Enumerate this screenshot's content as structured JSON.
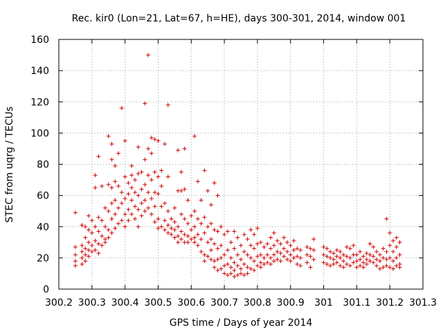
{
  "chart_data": {
    "type": "scatter",
    "title": "Rec. kir0 (Lon=21, Lat=67, h=HE), days 300-301, 2014, window 001",
    "xlabel": "GPS time / Days of year 2014",
    "ylabel": "STEC from uqrg / TECUs",
    "xlim": [
      300.2,
      301.3
    ],
    "ylim": [
      0,
      160
    ],
    "xticks": [
      "300.2",
      "300.3",
      "300.4",
      "300.5",
      "300.6",
      "300.7",
      "300.8",
      "300.9",
      "301",
      "301.1",
      "301.2",
      "301.3"
    ],
    "yticks": [
      "0",
      "20",
      "40",
      "60",
      "80",
      "100",
      "120",
      "140",
      "160"
    ],
    "grid": true,
    "marker": "+",
    "marker_color": "#cc0000",
    "points": [
      [
        300.25,
        49
      ],
      [
        300.25,
        27
      ],
      [
        300.25,
        22
      ],
      [
        300.25,
        18
      ],
      [
        300.25,
        15
      ],
      [
        300.27,
        41
      ],
      [
        300.27,
        28
      ],
      [
        300.27,
        24
      ],
      [
        300.27,
        20
      ],
      [
        300.27,
        16
      ],
      [
        300.28,
        40
      ],
      [
        300.28,
        33
      ],
      [
        300.28,
        26
      ],
      [
        300.28,
        22
      ],
      [
        300.28,
        18
      ],
      [
        300.29,
        47
      ],
      [
        300.29,
        38
      ],
      [
        300.29,
        30
      ],
      [
        300.29,
        25
      ],
      [
        300.29,
        21
      ],
      [
        300.3,
        44
      ],
      [
        300.3,
        36
      ],
      [
        300.3,
        28
      ],
      [
        300.3,
        24
      ],
      [
        300.31,
        73
      ],
      [
        300.31,
        65
      ],
      [
        300.31,
        40
      ],
      [
        300.31,
        31
      ],
      [
        300.31,
        25
      ],
      [
        300.32,
        85
      ],
      [
        300.32,
        46
      ],
      [
        300.32,
        37
      ],
      [
        300.32,
        29
      ],
      [
        300.32,
        23
      ],
      [
        300.33,
        66
      ],
      [
        300.33,
        44
      ],
      [
        300.33,
        34
      ],
      [
        300.33,
        28
      ],
      [
        300.34,
        52
      ],
      [
        300.34,
        40
      ],
      [
        300.34,
        32
      ],
      [
        300.34,
        30
      ],
      [
        300.35,
        98
      ],
      [
        300.35,
        67
      ],
      [
        300.35,
        50
      ],
      [
        300.35,
        38
      ],
      [
        300.35,
        33
      ],
      [
        300.36,
        93
      ],
      [
        300.36,
        83
      ],
      [
        300.36,
        65
      ],
      [
        300.36,
        55
      ],
      [
        300.36,
        45
      ],
      [
        300.36,
        36
      ],
      [
        300.37,
        79
      ],
      [
        300.37,
        69
      ],
      [
        300.37,
        57
      ],
      [
        300.37,
        48
      ],
      [
        300.37,
        39
      ],
      [
        300.38,
        87
      ],
      [
        300.38,
        66
      ],
      [
        300.38,
        52
      ],
      [
        300.38,
        42
      ],
      [
        300.39,
        116
      ],
      [
        300.39,
        62
      ],
      [
        300.39,
        55
      ],
      [
        300.39,
        44
      ],
      [
        300.4,
        95
      ],
      [
        300.4,
        72
      ],
      [
        300.4,
        58
      ],
      [
        300.4,
        48
      ],
      [
        300.4,
        40
      ],
      [
        300.41,
        68
      ],
      [
        300.41,
        61
      ],
      [
        300.41,
        51
      ],
      [
        300.41,
        44
      ],
      [
        300.42,
        79
      ],
      [
        300.42,
        73
      ],
      [
        300.42,
        65
      ],
      [
        300.42,
        57
      ],
      [
        300.42,
        48
      ],
      [
        300.43,
        70
      ],
      [
        300.43,
        62
      ],
      [
        300.43,
        53
      ],
      [
        300.43,
        45
      ],
      [
        300.44,
        91
      ],
      [
        300.44,
        74
      ],
      [
        300.44,
        60
      ],
      [
        300.44,
        51
      ],
      [
        300.44,
        40
      ],
      [
        300.45,
        75
      ],
      [
        300.45,
        64
      ],
      [
        300.45,
        55
      ],
      [
        300.45,
        47
      ],
      [
        300.46,
        119
      ],
      [
        300.46,
        83
      ],
      [
        300.46,
        67
      ],
      [
        300.46,
        57
      ],
      [
        300.46,
        50
      ],
      [
        300.47,
        150
      ],
      [
        300.47,
        90
      ],
      [
        300.47,
        73
      ],
      [
        300.47,
        62
      ],
      [
        300.47,
        52
      ],
      [
        300.48,
        97
      ],
      [
        300.48,
        87
      ],
      [
        300.48,
        70
      ],
      [
        300.48,
        58
      ],
      [
        300.48,
        48
      ],
      [
        300.49,
        96
      ],
      [
        300.49,
        75
      ],
      [
        300.49,
        62
      ],
      [
        300.49,
        53
      ],
      [
        300.49,
        43
      ],
      [
        300.5,
        95
      ],
      [
        300.5,
        72
      ],
      [
        300.5,
        61
      ],
      [
        300.5,
        45
      ],
      [
        300.5,
        39
      ],
      [
        300.51,
        76
      ],
      [
        300.51,
        66
      ],
      [
        300.51,
        53
      ],
      [
        300.51,
        40
      ],
      [
        300.52,
        93
      ],
      [
        300.52,
        55
      ],
      [
        300.52,
        44
      ],
      [
        300.52,
        38
      ],
      [
        300.53,
        118
      ],
      [
        300.53,
        72
      ],
      [
        300.53,
        50
      ],
      [
        300.53,
        41
      ],
      [
        300.53,
        36
      ],
      [
        300.54,
        45
      ],
      [
        300.54,
        39
      ],
      [
        300.54,
        35
      ],
      [
        300.55,
        52
      ],
      [
        300.55,
        43
      ],
      [
        300.55,
        38
      ],
      [
        300.55,
        33
      ],
      [
        300.56,
        89
      ],
      [
        300.56,
        63
      ],
      [
        300.56,
        40
      ],
      [
        300.56,
        34
      ],
      [
        300.56,
        30
      ],
      [
        300.57,
        75
      ],
      [
        300.57,
        63
      ],
      [
        300.57,
        48
      ],
      [
        300.57,
        37
      ],
      [
        300.57,
        32
      ],
      [
        300.58,
        90
      ],
      [
        300.58,
        64
      ],
      [
        300.58,
        45
      ],
      [
        300.58,
        35
      ],
      [
        300.58,
        30
      ],
      [
        300.59,
        57
      ],
      [
        300.59,
        42
      ],
      [
        300.59,
        34
      ],
      [
        300.59,
        30
      ],
      [
        300.6,
        47
      ],
      [
        300.6,
        38
      ],
      [
        300.6,
        32
      ],
      [
        300.61,
        98
      ],
      [
        300.61,
        50
      ],
      [
        300.61,
        40
      ],
      [
        300.61,
        33
      ],
      [
        300.61,
        30
      ],
      [
        300.62,
        69
      ],
      [
        300.62,
        45
      ],
      [
        300.62,
        35
      ],
      [
        300.62,
        28
      ],
      [
        300.63,
        57
      ],
      [
        300.63,
        42
      ],
      [
        300.63,
        32
      ],
      [
        300.63,
        24
      ],
      [
        300.64,
        76
      ],
      [
        300.64,
        46
      ],
      [
        300.64,
        36
      ],
      [
        300.64,
        22
      ],
      [
        300.64,
        18
      ],
      [
        300.65,
        63
      ],
      [
        300.65,
        40
      ],
      [
        300.65,
        30
      ],
      [
        300.65,
        21
      ],
      [
        300.66,
        54
      ],
      [
        300.66,
        42
      ],
      [
        300.66,
        32
      ],
      [
        300.66,
        25
      ],
      [
        300.66,
        19
      ],
      [
        300.67,
        68
      ],
      [
        300.67,
        38
      ],
      [
        300.67,
        29
      ],
      [
        300.67,
        18
      ],
      [
        300.67,
        14
      ],
      [
        300.68,
        60
      ],
      [
        300.68,
        37
      ],
      [
        300.68,
        26
      ],
      [
        300.68,
        19
      ],
      [
        300.68,
        12
      ],
      [
        300.69,
        40
      ],
      [
        300.69,
        28
      ],
      [
        300.69,
        20
      ],
      [
        300.69,
        13
      ],
      [
        300.7,
        35
      ],
      [
        300.7,
        22
      ],
      [
        300.7,
        15
      ],
      [
        300.7,
        10
      ],
      [
        300.71,
        37
      ],
      [
        300.71,
        25
      ],
      [
        300.71,
        16
      ],
      [
        300.71,
        9
      ],
      [
        300.72,
        30
      ],
      [
        300.72,
        20
      ],
      [
        300.72,
        14
      ],
      [
        300.72,
        10
      ],
      [
        300.73,
        37
      ],
      [
        300.73,
        26
      ],
      [
        300.73,
        17
      ],
      [
        300.73,
        12
      ],
      [
        300.73,
        8
      ],
      [
        300.74,
        33
      ],
      [
        300.74,
        22
      ],
      [
        300.74,
        15
      ],
      [
        300.74,
        9
      ],
      [
        300.75,
        28
      ],
      [
        300.75,
        19
      ],
      [
        300.75,
        13
      ],
      [
        300.75,
        10
      ],
      [
        300.76,
        35
      ],
      [
        300.76,
        24
      ],
      [
        300.76,
        16
      ],
      [
        300.76,
        9
      ],
      [
        300.77,
        32
      ],
      [
        300.77,
        22
      ],
      [
        300.77,
        14
      ],
      [
        300.77,
        10
      ],
      [
        300.78,
        38
      ],
      [
        300.78,
        28
      ],
      [
        300.78,
        20
      ],
      [
        300.78,
        13
      ],
      [
        300.79,
        35
      ],
      [
        300.79,
        26
      ],
      [
        300.79,
        18
      ],
      [
        300.79,
        12
      ],
      [
        300.8,
        39
      ],
      [
        300.8,
        29
      ],
      [
        300.8,
        21
      ],
      [
        300.8,
        15
      ],
      [
        300.81,
        30
      ],
      [
        300.81,
        22
      ],
      [
        300.81,
        17
      ],
      [
        300.81,
        14
      ],
      [
        300.82,
        27
      ],
      [
        300.82,
        20
      ],
      [
        300.82,
        16
      ],
      [
        300.83,
        29
      ],
      [
        300.83,
        22
      ],
      [
        300.83,
        17
      ],
      [
        300.84,
        33
      ],
      [
        300.84,
        26
      ],
      [
        300.84,
        20
      ],
      [
        300.84,
        16
      ],
      [
        300.85,
        36
      ],
      [
        300.85,
        28
      ],
      [
        300.85,
        22
      ],
      [
        300.85,
        18
      ],
      [
        300.86,
        31
      ],
      [
        300.86,
        24
      ],
      [
        300.86,
        19
      ],
      [
        300.87,
        29
      ],
      [
        300.87,
        23
      ],
      [
        300.87,
        18
      ],
      [
        300.88,
        33
      ],
      [
        300.88,
        26
      ],
      [
        300.88,
        21
      ],
      [
        300.89,
        30
      ],
      [
        300.89,
        24
      ],
      [
        300.89,
        19
      ],
      [
        300.9,
        28
      ],
      [
        300.9,
        22
      ],
      [
        300.9,
        18
      ],
      [
        300.91,
        31
      ],
      [
        300.91,
        25
      ],
      [
        300.91,
        20
      ],
      [
        300.92,
        26
      ],
      [
        300.92,
        21
      ],
      [
        300.92,
        16
      ],
      [
        300.93,
        25
      ],
      [
        300.93,
        20
      ],
      [
        300.93,
        15
      ],
      [
        300.95,
        27
      ],
      [
        300.95,
        22
      ],
      [
        300.95,
        17
      ],
      [
        300.96,
        26
      ],
      [
        300.96,
        21
      ],
      [
        300.96,
        14
      ],
      [
        300.97,
        32
      ],
      [
        300.97,
        25
      ],
      [
        300.97,
        19
      ],
      [
        301.0,
        27
      ],
      [
        301.0,
        22
      ],
      [
        301.0,
        17
      ],
      [
        301.01,
        26
      ],
      [
        301.01,
        21
      ],
      [
        301.01,
        16
      ],
      [
        301.02,
        24
      ],
      [
        301.02,
        20
      ],
      [
        301.02,
        15
      ],
      [
        301.03,
        23
      ],
      [
        301.03,
        19
      ],
      [
        301.03,
        16
      ],
      [
        301.04,
        25
      ],
      [
        301.04,
        21
      ],
      [
        301.04,
        17
      ],
      [
        301.05,
        24
      ],
      [
        301.05,
        20
      ],
      [
        301.05,
        15
      ],
      [
        301.06,
        22
      ],
      [
        301.06,
        18
      ],
      [
        301.06,
        14
      ],
      [
        301.07,
        27
      ],
      [
        301.07,
        21
      ],
      [
        301.07,
        16
      ],
      [
        301.08,
        26
      ],
      [
        301.08,
        20
      ],
      [
        301.08,
        15
      ],
      [
        301.09,
        28
      ],
      [
        301.09,
        22
      ],
      [
        301.09,
        17
      ],
      [
        301.1,
        22
      ],
      [
        301.1,
        18
      ],
      [
        301.1,
        14
      ],
      [
        301.11,
        24
      ],
      [
        301.11,
        19
      ],
      [
        301.11,
        15
      ],
      [
        301.12,
        21
      ],
      [
        301.12,
        17
      ],
      [
        301.12,
        14
      ],
      [
        301.13,
        23
      ],
      [
        301.13,
        19
      ],
      [
        301.13,
        16
      ],
      [
        301.14,
        29
      ],
      [
        301.14,
        22
      ],
      [
        301.14,
        18
      ],
      [
        301.15,
        27
      ],
      [
        301.15,
        21
      ],
      [
        301.15,
        17
      ],
      [
        301.16,
        24
      ],
      [
        301.16,
        19
      ],
      [
        301.16,
        15
      ],
      [
        301.17,
        22
      ],
      [
        301.17,
        18
      ],
      [
        301.17,
        13
      ],
      [
        301.18,
        26
      ],
      [
        301.18,
        20
      ],
      [
        301.18,
        14
      ],
      [
        301.19,
        45
      ],
      [
        301.19,
        24
      ],
      [
        301.19,
        19
      ],
      [
        301.19,
        15
      ],
      [
        301.2,
        36
      ],
      [
        301.2,
        28
      ],
      [
        301.2,
        20
      ],
      [
        301.2,
        14
      ],
      [
        301.21,
        31
      ],
      [
        301.21,
        24
      ],
      [
        301.21,
        18
      ],
      [
        301.21,
        13
      ],
      [
        301.22,
        33
      ],
      [
        301.22,
        27
      ],
      [
        301.22,
        20
      ],
      [
        301.22,
        15
      ],
      [
        301.23,
        30
      ],
      [
        301.23,
        22
      ],
      [
        301.23,
        16
      ],
      [
        301.23,
        14
      ]
    ]
  }
}
